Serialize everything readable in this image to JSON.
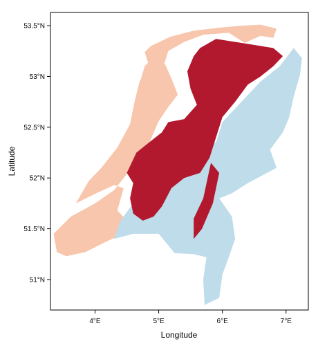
{
  "chart_data": {
    "type": "heatmap",
    "title": "",
    "xlabel": "Longitude",
    "ylabel": "Latitude",
    "xlim": [
      3.3,
      7.35
    ],
    "ylim": [
      50.7,
      53.63
    ],
    "x_ticks": [
      {
        "value": 4,
        "label": "4°E"
      },
      {
        "value": 5,
        "label": "5°E"
      },
      {
        "value": 6,
        "label": "6°E"
      },
      {
        "value": 7,
        "label": "7°E"
      }
    ],
    "y_ticks": [
      {
        "value": 51,
        "label": "51°N"
      },
      {
        "value": 51.5,
        "label": "51.5°N"
      },
      {
        "value": 52,
        "label": "52°N"
      },
      {
        "value": 52.5,
        "label": "52.5°N"
      },
      {
        "value": 53,
        "label": "53°N"
      },
      {
        "value": 53.5,
        "label": "53.5°N"
      }
    ],
    "grid": false,
    "legend": "none",
    "colors": {
      "coastal_zone": "#f8c6ad",
      "central_zone": "#b3192e",
      "eastern_southern_zone": "#bedcea"
    },
    "regions": [
      {
        "name": "coastal_zone",
        "polygons": [
          [
            [
              4.78,
              53.24
            ],
            [
              4.88,
              53.3
            ],
            [
              5.18,
              53.39
            ],
            [
              5.55,
              53.45
            ],
            [
              5.95,
              53.48
            ],
            [
              6.3,
              53.5
            ],
            [
              6.6,
              53.51
            ],
            [
              6.85,
              53.47
            ],
            [
              6.8,
              53.38
            ],
            [
              6.6,
              53.4
            ],
            [
              6.35,
              53.33
            ],
            [
              6.1,
              53.43
            ],
            [
              5.7,
              53.41
            ],
            [
              5.4,
              53.34
            ],
            [
              5.15,
              53.25
            ],
            [
              5.05,
              53.05
            ],
            [
              4.88,
              53.0
            ],
            [
              4.7,
              52.93
            ],
            [
              4.78,
              53.1
            ],
            [
              4.9,
              53.18
            ],
            [
              5.1,
              53.12
            ],
            [
              5.2,
              52.98
            ],
            [
              5.3,
              52.82
            ],
            [
              5.15,
              52.7
            ],
            [
              5.0,
              52.56
            ],
            [
              4.9,
              52.42
            ],
            [
              4.8,
              52.25
            ],
            [
              4.55,
              52.08
            ],
            [
              4.3,
              51.88
            ],
            [
              4.0,
              51.75
            ],
            [
              3.62,
              51.62
            ],
            [
              3.35,
              51.45
            ],
            [
              3.4,
              51.27
            ],
            [
              3.55,
              51.23
            ],
            [
              3.85,
              51.27
            ],
            [
              4.1,
              51.35
            ],
            [
              4.4,
              51.44
            ],
            [
              4.55,
              51.55
            ],
            [
              4.35,
              51.68
            ],
            [
              4.45,
              51.9
            ],
            [
              4.3,
              51.93
            ],
            [
              4.02,
              51.85
            ],
            [
              3.7,
              51.75
            ],
            [
              3.9,
              51.97
            ],
            [
              4.1,
              52.1
            ],
            [
              4.35,
              52.3
            ],
            [
              4.55,
              52.53
            ],
            [
              4.62,
              52.75
            ],
            [
              4.7,
              52.95
            ],
            [
              4.85,
              53.1
            ],
            [
              4.78,
              53.24
            ]
          ]
        ]
      },
      {
        "name": "eastern_southern_zone",
        "polygons": [
          [
            [
              7.12,
              53.28
            ],
            [
              7.25,
              53.18
            ],
            [
              7.22,
              53.02
            ],
            [
              7.12,
              52.8
            ],
            [
              7.05,
              52.6
            ],
            [
              6.95,
              52.45
            ],
            [
              6.75,
              52.28
            ],
            [
              6.85,
              52.1
            ],
            [
              6.4,
              51.95
            ],
            [
              6.15,
              51.85
            ],
            [
              5.95,
              51.8
            ],
            [
              6.15,
              51.62
            ],
            [
              6.2,
              51.4
            ],
            [
              6.1,
              51.22
            ],
            [
              6.0,
              51.05
            ],
            [
              5.95,
              50.82
            ],
            [
              5.72,
              50.75
            ],
            [
              5.7,
              51.0
            ],
            [
              5.75,
              51.22
            ],
            [
              5.55,
              51.25
            ],
            [
              5.25,
              51.26
            ],
            [
              5.0,
              51.45
            ],
            [
              4.6,
              51.45
            ],
            [
              4.3,
              51.4
            ],
            [
              4.4,
              51.58
            ],
            [
              4.6,
              51.75
            ],
            [
              4.85,
              51.8
            ],
            [
              5.0,
              51.9
            ],
            [
              5.2,
              52.05
            ],
            [
              5.4,
              52.22
            ],
            [
              5.65,
              52.32
            ],
            [
              5.9,
              52.35
            ],
            [
              6.0,
              52.55
            ],
            [
              6.3,
              52.75
            ],
            [
              6.6,
              52.95
            ],
            [
              6.9,
              53.1
            ],
            [
              7.12,
              53.28
            ]
          ]
        ]
      },
      {
        "name": "central_zone",
        "polygons": [
          [
            [
              5.9,
              53.37
            ],
            [
              6.3,
              53.33
            ],
            [
              6.6,
              53.3
            ],
            [
              6.8,
              53.28
            ],
            [
              6.95,
              53.2
            ],
            [
              6.8,
              53.1
            ],
            [
              6.6,
              53.0
            ],
            [
              6.4,
              52.92
            ],
            [
              6.2,
              52.75
            ],
            [
              6.0,
              52.6
            ],
            [
              5.9,
              52.4
            ],
            [
              5.8,
              52.2
            ],
            [
              5.65,
              52.05
            ],
            [
              5.4,
              52.0
            ],
            [
              5.2,
              51.9
            ],
            [
              5.05,
              51.72
            ],
            [
              4.92,
              51.62
            ],
            [
              4.75,
              51.58
            ],
            [
              4.6,
              51.65
            ],
            [
              4.55,
              51.8
            ],
            [
              4.6,
              51.95
            ],
            [
              4.5,
              52.05
            ],
            [
              4.65,
              52.25
            ],
            [
              4.85,
              52.35
            ],
            [
              5.05,
              52.45
            ],
            [
              5.15,
              52.55
            ],
            [
              5.4,
              52.58
            ],
            [
              5.6,
              52.72
            ],
            [
              5.5,
              52.88
            ],
            [
              5.45,
              53.05
            ],
            [
              5.55,
              53.2
            ],
            [
              5.65,
              53.28
            ],
            [
              5.9,
              53.37
            ]
          ],
          [
            [
              5.82,
              52.15
            ],
            [
              5.95,
              52.05
            ],
            [
              5.85,
              51.75
            ],
            [
              5.68,
              51.5
            ],
            [
              5.55,
              51.4
            ],
            [
              5.55,
              51.6
            ],
            [
              5.7,
              51.8
            ],
            [
              5.82,
              52.15
            ]
          ]
        ]
      }
    ]
  }
}
